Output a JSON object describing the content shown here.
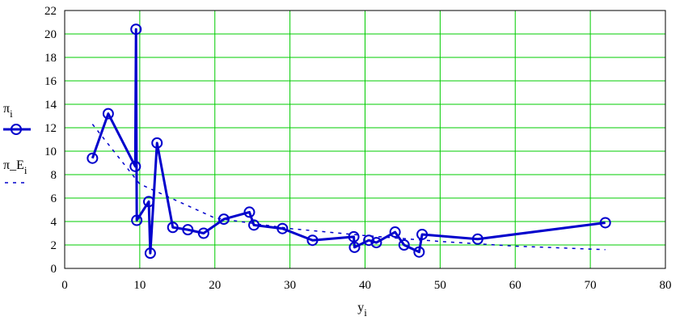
{
  "chart_data": {
    "type": "line",
    "xlabel": "y",
    "xlabel_sub": "i",
    "xlim": [
      0,
      80
    ],
    "ylim": [
      0,
      22
    ],
    "xticks": [
      0,
      10,
      20,
      30,
      40,
      50,
      60,
      70,
      80
    ],
    "yticks": [
      0,
      2,
      4,
      6,
      8,
      10,
      12,
      14,
      16,
      18,
      20,
      22
    ],
    "grid": true,
    "grid_color": "#00cc00",
    "legend_position": "left",
    "series": [
      {
        "name": "π",
        "name_sub": "i",
        "color": "#0000cc",
        "style": "solid-with-circle-markers",
        "x": [
          3.7,
          5.8,
          9.4,
          9.5,
          9.6,
          11.2,
          11.4,
          12.3,
          14.4,
          16.4,
          18.5,
          21.2,
          24.6,
          25.2,
          29.0,
          33.0,
          38.5,
          38.6,
          40.5,
          41.5,
          44.0,
          45.2,
          47.2,
          47.6,
          55.0,
          72.0
        ],
        "values": [
          9.4,
          13.2,
          8.7,
          20.4,
          4.1,
          5.7,
          1.3,
          10.7,
          3.5,
          3.3,
          3.0,
          4.2,
          4.8,
          3.7,
          3.4,
          2.4,
          2.7,
          1.8,
          2.4,
          2.2,
          3.1,
          2.0,
          1.4,
          2.9,
          2.5,
          3.9
        ]
      },
      {
        "name": "π_E",
        "name_sub": "i",
        "color": "#0000cc",
        "style": "dashed",
        "x": [
          3.7,
          10,
          20,
          30,
          40,
          50,
          60,
          70,
          72
        ],
        "values": [
          12.3,
          7.2,
          4.3,
          3.4,
          2.8,
          2.3,
          1.9,
          1.65,
          1.6
        ]
      }
    ]
  }
}
